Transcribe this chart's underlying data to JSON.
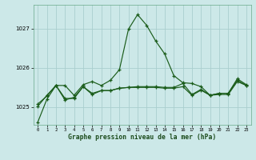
{
  "title": "Graphe pression niveau de la mer (hPa)",
  "background_color": "#cce8e8",
  "grid_color": "#aacece",
  "line_color": "#1a5c1a",
  "xlim": [
    -0.5,
    23.5
  ],
  "ylim": [
    1024.55,
    1027.6
  ],
  "yticks": [
    1025,
    1026,
    1027
  ],
  "xticks": [
    0,
    1,
    2,
    3,
    4,
    5,
    6,
    7,
    8,
    9,
    10,
    11,
    12,
    13,
    14,
    15,
    16,
    17,
    18,
    19,
    20,
    21,
    22,
    23
  ],
  "series0": [
    1024.62,
    1025.2,
    1025.55,
    1025.55,
    1025.3,
    1025.57,
    1025.65,
    1025.55,
    1025.68,
    1025.95,
    1026.98,
    1027.35,
    1027.08,
    1026.68,
    1026.35,
    1025.8,
    1025.62,
    1025.6,
    1025.52,
    1025.3,
    1025.35,
    1025.35,
    1025.72,
    1025.57
  ],
  "series1": [
    1025.08,
    1025.28,
    1025.55,
    1025.22,
    1025.22,
    1025.52,
    1025.35,
    1025.42,
    1025.42,
    1025.48,
    1025.5,
    1025.5,
    1025.5,
    1025.5,
    1025.48,
    1025.48,
    1025.52,
    1025.3,
    1025.43,
    1025.3,
    1025.32,
    1025.32,
    1025.65,
    1025.55
  ],
  "series2": [
    1025.02,
    1025.3,
    1025.55,
    1025.18,
    1025.25,
    1025.52,
    1025.32,
    1025.42,
    1025.42,
    1025.48,
    1025.5,
    1025.52,
    1025.52,
    1025.52,
    1025.5,
    1025.5,
    1025.6,
    1025.32,
    1025.45,
    1025.3,
    1025.35,
    1025.35,
    1025.68,
    1025.55
  ]
}
